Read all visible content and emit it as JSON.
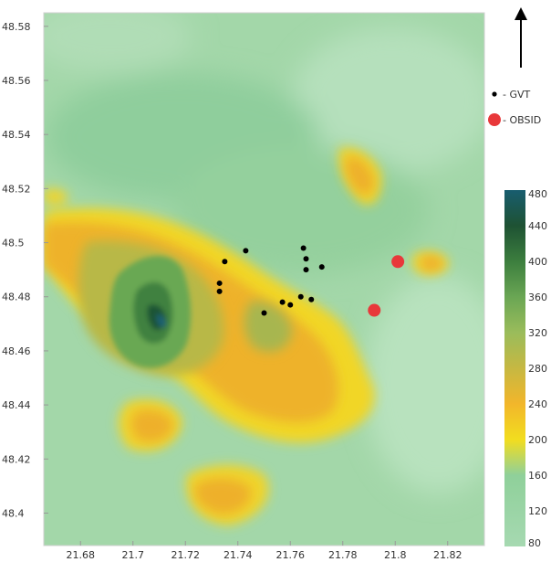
{
  "map": {
    "lon_ticks": [
      "21.68",
      "21.7",
      "21.72",
      "21.74",
      "21.76",
      "21.78",
      "21.8",
      "21.82"
    ],
    "lat_ticks": [
      "48.58",
      "48.56",
      "48.54",
      "48.52",
      "48.5",
      "48.48",
      "48.46",
      "48.44",
      "48.42",
      "48.4"
    ],
    "lon_range": [
      21.666,
      21.834
    ],
    "lat_range": [
      48.388,
      48.585
    ],
    "north_arrow_icon": "north-arrow-icon"
  },
  "legend": {
    "gvt_label": "- GVT",
    "obsid_label": "- OBSID",
    "gvt_color": "#000000",
    "obsid_color": "#e8383a"
  },
  "colorbar": {
    "ticks": [
      "480",
      "440",
      "400",
      "360",
      "320",
      "280",
      "240",
      "200",
      "160",
      "120",
      "80"
    ],
    "range": [
      80,
      480
    ],
    "stops": [
      {
        "value": 80,
        "color": "#a6d9b1"
      },
      {
        "value": 160,
        "color": "#8fd09a"
      },
      {
        "value": 200,
        "color": "#f2dd1f"
      },
      {
        "value": 240,
        "color": "#f2b62b"
      },
      {
        "value": 280,
        "color": "#c6b842"
      },
      {
        "value": 320,
        "color": "#9abc5b"
      },
      {
        "value": 360,
        "color": "#6aa654"
      },
      {
        "value": 400,
        "color": "#3c7e3e"
      },
      {
        "value": 440,
        "color": "#1e5233"
      },
      {
        "value": 480,
        "color": "#185d6f"
      }
    ]
  },
  "points": {
    "gvt": [
      {
        "lon": 21.735,
        "lat": 48.493
      },
      {
        "lon": 21.743,
        "lat": 48.497
      },
      {
        "lon": 21.733,
        "lat": 48.485
      },
      {
        "lon": 21.733,
        "lat": 48.482
      },
      {
        "lon": 21.765,
        "lat": 48.498
      },
      {
        "lon": 21.766,
        "lat": 48.494
      },
      {
        "lon": 21.766,
        "lat": 48.49
      },
      {
        "lon": 21.772,
        "lat": 48.491
      },
      {
        "lon": 21.757,
        "lat": 48.478
      },
      {
        "lon": 21.76,
        "lat": 48.477
      },
      {
        "lon": 21.764,
        "lat": 48.48
      },
      {
        "lon": 21.768,
        "lat": 48.479
      },
      {
        "lon": 21.75,
        "lat": 48.474
      }
    ],
    "obsid": [
      {
        "lon": 21.801,
        "lat": 48.493
      },
      {
        "lon": 21.792,
        "lat": 48.475
      }
    ]
  }
}
